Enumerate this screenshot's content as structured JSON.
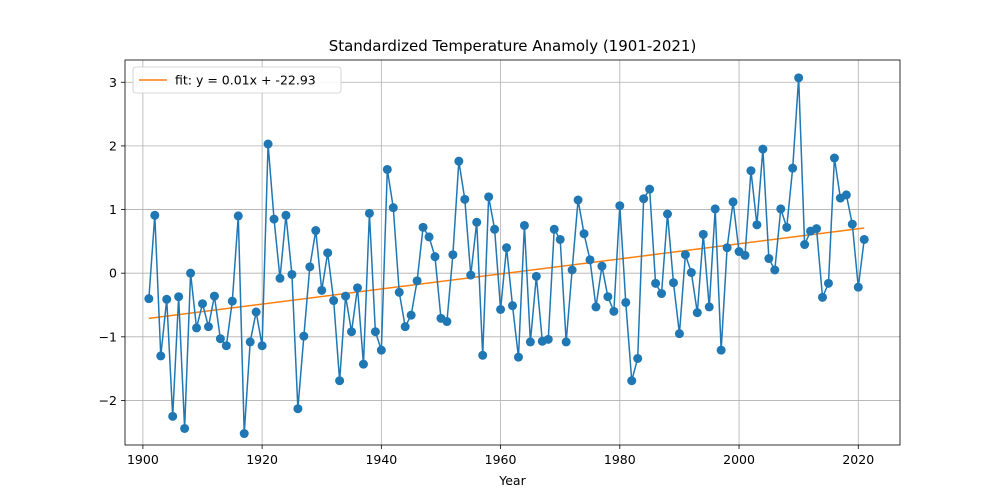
{
  "chart_data": {
    "type": "line",
    "title": "Standardized Temperature Anamoly (1901-2021)",
    "xlabel": "Year",
    "ylabel": "",
    "xlim": [
      1897,
      2027
    ],
    "ylim": [
      -2.7,
      3.35
    ],
    "xticks": [
      1900,
      1920,
      1940,
      1960,
      1980,
      2000,
      2020
    ],
    "yticks": [
      -2,
      -1,
      0,
      1,
      2,
      3
    ],
    "ytick_labels": [
      "−2",
      "−1",
      "0",
      "1",
      "2",
      "3"
    ],
    "grid": true,
    "legend": {
      "placement": "top-left",
      "entries": [
        "fit: y = 0.01x + -22.93"
      ]
    },
    "colors": {
      "series": "#1f77b4",
      "fit": "#ff7f0e"
    },
    "series": [
      {
        "marker": "circle",
        "x": [
          1901,
          1902,
          1903,
          1904,
          1905,
          1906,
          1907,
          1908,
          1909,
          1910,
          1911,
          1912,
          1913,
          1914,
          1915,
          1916,
          1917,
          1918,
          1919,
          1920,
          1921,
          1922,
          1923,
          1924,
          1925,
          1926,
          1927,
          1928,
          1929,
          1930,
          1931,
          1932,
          1933,
          1934,
          1935,
          1936,
          1937,
          1938,
          1939,
          1940,
          1941,
          1942,
          1943,
          1944,
          1945,
          1946,
          1947,
          1948,
          1949,
          1950,
          1951,
          1952,
          1953,
          1954,
          1955,
          1956,
          1957,
          1958,
          1959,
          1960,
          1961,
          1962,
          1963,
          1964,
          1965,
          1966,
          1967,
          1968,
          1969,
          1970,
          1971,
          1972,
          1973,
          1974,
          1975,
          1976,
          1977,
          1978,
          1979,
          1980,
          1981,
          1982,
          1983,
          1984,
          1985,
          1986,
          1987,
          1988,
          1989,
          1990,
          1991,
          1992,
          1993,
          1994,
          1995,
          1996,
          1997,
          1998,
          1999,
          2000,
          2001,
          2002,
          2003,
          2004,
          2005,
          2006,
          2007,
          2008,
          2009,
          2010,
          2011,
          2012,
          2013,
          2014,
          2015,
          2016,
          2017,
          2018,
          2019,
          2020,
          2021
        ],
        "y": [
          -0.4,
          0.91,
          -1.3,
          -0.41,
          -2.25,
          -0.37,
          -2.44,
          0.0,
          -0.86,
          -0.48,
          -0.84,
          -0.36,
          -1.03,
          -1.14,
          -0.44,
          0.9,
          -2.52,
          -1.08,
          -0.61,
          -1.14,
          2.03,
          0.85,
          -0.08,
          0.91,
          -0.02,
          -2.13,
          -0.99,
          0.1,
          0.67,
          -0.27,
          0.32,
          -0.43,
          -1.69,
          -0.36,
          -0.92,
          -0.23,
          -1.43,
          0.94,
          -0.92,
          -1.21,
          1.63,
          1.03,
          -0.3,
          -0.84,
          -0.66,
          -0.12,
          0.72,
          0.57,
          0.26,
          -0.71,
          -0.76,
          0.29,
          1.76,
          1.16,
          -0.03,
          0.8,
          -1.29,
          1.2,
          0.69,
          -0.57,
          0.4,
          -0.51,
          -1.32,
          0.75,
          -1.08,
          -0.05,
          -1.07,
          -1.04,
          0.69,
          0.53,
          -1.08,
          0.05,
          1.15,
          0.62,
          0.21,
          -0.53,
          0.11,
          -0.37,
          -0.6,
          1.06,
          -0.46,
          -1.69,
          -1.34,
          1.17,
          1.32,
          -0.16,
          -0.32,
          0.93,
          -0.15,
          -0.95,
          0.29,
          0.01,
          -0.62,
          0.61,
          -0.53,
          1.01,
          -1.21,
          0.4,
          1.12,
          0.34,
          0.28,
          1.61,
          0.76,
          1.95,
          0.23,
          0.05,
          1.01,
          0.72,
          1.65,
          3.07,
          0.45,
          0.66,
          0.7,
          -0.38,
          -0.16,
          1.81,
          1.18,
          1.23,
          0.77,
          -0.22,
          0.53
        ]
      },
      {
        "name": "fit: y = 0.01x + -22.93",
        "x": [
          1901,
          2021
        ],
        "y": [
          -0.71,
          0.71
        ]
      }
    ]
  }
}
